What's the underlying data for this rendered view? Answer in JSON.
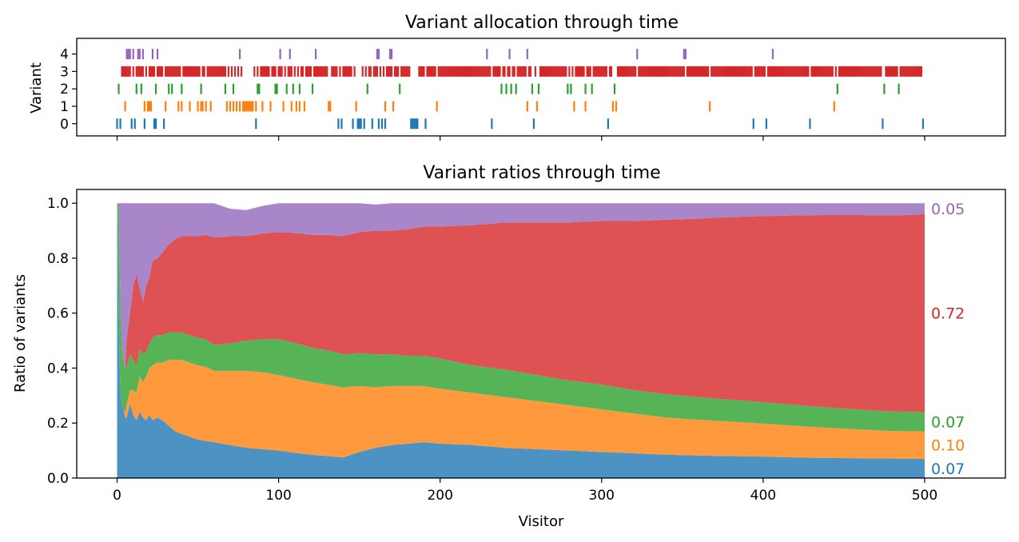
{
  "colors": {
    "variant0": "#1f77b4",
    "variant1": "#ff7f0e",
    "variant2": "#2ca02c",
    "variant3": "#d62728",
    "variant4": "#9467bd"
  },
  "chart_data": [
    {
      "type": "scatter",
      "title": "Variant allocation through time",
      "ylabel": "Variant",
      "xlim": [
        -25,
        550
      ],
      "ylim": [
        -0.7,
        4.9
      ],
      "xticks": [
        0,
        100,
        200,
        300,
        400,
        500
      ],
      "yticks": [
        0,
        1,
        2,
        3,
        4
      ],
      "ytick_labels": [
        "0",
        "1",
        "2",
        "3",
        "4"
      ],
      "marker": "vertical-line",
      "series": [
        {
          "variant": 0,
          "x": [
            0,
            2,
            9,
            11,
            17,
            23,
            24,
            29,
            86,
            137,
            139,
            146,
            149,
            150,
            151,
            153,
            158,
            162,
            164,
            166,
            182,
            183,
            184,
            185,
            186,
            191,
            232,
            258,
            304,
            394,
            402,
            429,
            474,
            499
          ]
        },
        {
          "variant": 1,
          "x": [
            5,
            17,
            19,
            20,
            21,
            30,
            38,
            40,
            45,
            50,
            52,
            53,
            55,
            58,
            68,
            70,
            72,
            74,
            76,
            78,
            79,
            80,
            81,
            82,
            83,
            84,
            86,
            90,
            95,
            103,
            108,
            111,
            113,
            116,
            131,
            132,
            148,
            166,
            171,
            198,
            254,
            260,
            283,
            290,
            307,
            309,
            367,
            444
          ]
        },
        {
          "variant": 2,
          "x": [
            1,
            12,
            15,
            24,
            32,
            34,
            40,
            52,
            67,
            72,
            87,
            88,
            98,
            99,
            105,
            109,
            113,
            121,
            155,
            175,
            238,
            241,
            244,
            247,
            257,
            261,
            279,
            281,
            290,
            294,
            308,
            446,
            475,
            484
          ]
        },
        {
          "variant": 3,
          "x": [
            3,
            4,
            5,
            6,
            7,
            8,
            10,
            12,
            13,
            14,
            15,
            16,
            18,
            20,
            21,
            22,
            23,
            25,
            26,
            27,
            28,
            30,
            31,
            32,
            33,
            34,
            35,
            36,
            37,
            38,
            39,
            41,
            42,
            43,
            44,
            45,
            46,
            47,
            48,
            49,
            50,
            51,
            53,
            54,
            56,
            57,
            58,
            59,
            60,
            61,
            62,
            63,
            64,
            65,
            66,
            67,
            69,
            71,
            73,
            75,
            77,
            85,
            87,
            89,
            90,
            91,
            92,
            93,
            94,
            96,
            97,
            98,
            100,
            101,
            102,
            104,
            106,
            107,
            108,
            110,
            112,
            114,
            115,
            117,
            118,
            119,
            120,
            122,
            123,
            124,
            125,
            126,
            127,
            128,
            129,
            130,
            133,
            134,
            135,
            136,
            138,
            140,
            141,
            142,
            143,
            144,
            145,
            147,
            152,
            154,
            156,
            157,
            159,
            160,
            161,
            163,
            165,
            167,
            168,
            169,
            170,
            172,
            173,
            174,
            176,
            177,
            178,
            179,
            180,
            181,
            187,
            188,
            189,
            190,
            192,
            193,
            194,
            195,
            196,
            197,
            199,
            200,
            201,
            202,
            203,
            204,
            205,
            206,
            207,
            208,
            209,
            210,
            211,
            212,
            213,
            214,
            215,
            216,
            217,
            218,
            219,
            220,
            221,
            222,
            223,
            224,
            225,
            226,
            227,
            228,
            229,
            230,
            231,
            233,
            234,
            235,
            236,
            237,
            239,
            240,
            242,
            243,
            245,
            246,
            248,
            249,
            250,
            251,
            252,
            253,
            255,
            256,
            259,
            262,
            263,
            264,
            265,
            266,
            267,
            268,
            269,
            270,
            271,
            272,
            273,
            274,
            275,
            276,
            277,
            278,
            280,
            282,
            284,
            285,
            286,
            287,
            288,
            289,
            291,
            292,
            293,
            295,
            296,
            297,
            298,
            299,
            300,
            301,
            302,
            303,
            305,
            306,
            310,
            311,
            312,
            313,
            314,
            315,
            316,
            317,
            318,
            319,
            320,
            321,
            323,
            324,
            325,
            326,
            327,
            328,
            329,
            330,
            331,
            332,
            333,
            334,
            335,
            336,
            337,
            338,
            339,
            340,
            341,
            342,
            343,
            344,
            345,
            346,
            347,
            348,
            349,
            350,
            351,
            353,
            354,
            355,
            356,
            357,
            358,
            359,
            360,
            361,
            362,
            363,
            364,
            365,
            366,
            368,
            369,
            370,
            371,
            372,
            373,
            374,
            375,
            376,
            377,
            378,
            379,
            380,
            381,
            382,
            383,
            384,
            385,
            386,
            387,
            388,
            389,
            390,
            391,
            392,
            393,
            395,
            396,
            397,
            398,
            399,
            400,
            401,
            403,
            404,
            405,
            406,
            407,
            408,
            409,
            410,
            411,
            412,
            413,
            414,
            415,
            416,
            417,
            418,
            419,
            420,
            421,
            422,
            423,
            424,
            425,
            426,
            427,
            428,
            430,
            431,
            432,
            433,
            434,
            435,
            436,
            437,
            438,
            439,
            440,
            441,
            442,
            443,
            445,
            447,
            448,
            449,
            450,
            451,
            452,
            453,
            454,
            455,
            456,
            457,
            458,
            459,
            460,
            461,
            462,
            463,
            464,
            465,
            466,
            467,
            468,
            469,
            470,
            471,
            472,
            473,
            476,
            477,
            478,
            479,
            480,
            481,
            482,
            483,
            485,
            486,
            487,
            488,
            489,
            490,
            491,
            492,
            493,
            494,
            495,
            496,
            497,
            498
          ]
        },
        {
          "variant": 4,
          "x": [
            6,
            7,
            8,
            10,
            13,
            14,
            16,
            22,
            25,
            76,
            101,
            107,
            123,
            161,
            162,
            169,
            170,
            229,
            243,
            254,
            322,
            351,
            352,
            406
          ]
        }
      ]
    },
    {
      "type": "area",
      "stacked": true,
      "title": "Variant ratios through time",
      "xlabel": "Visitor",
      "ylabel": "Ratio of variants",
      "xlim": [
        -25,
        550
      ],
      "ylim": [
        0,
        1.05
      ],
      "xticks": [
        0,
        100,
        200,
        300,
        400,
        500
      ],
      "xtick_labels": [
        "0",
        "100",
        "200",
        "300",
        "400",
        "500"
      ],
      "yticks": [
        0,
        0.2,
        0.4,
        0.6,
        0.8,
        1.0
      ],
      "ytick_labels": [
        "0.0",
        "0.2",
        "0.4",
        "0.6",
        "0.8",
        "1.0"
      ],
      "x": [
        0,
        1,
        2,
        3,
        4,
        5,
        6,
        8,
        10,
        12,
        14,
        16,
        18,
        20,
        22,
        25,
        28,
        32,
        36,
        40,
        45,
        50,
        55,
        60,
        70,
        80,
        90,
        100,
        110,
        120,
        130,
        140,
        150,
        160,
        170,
        180,
        190,
        200,
        220,
        240,
        260,
        280,
        300,
        320,
        340,
        360,
        380,
        400,
        420,
        440,
        460,
        480,
        500
      ],
      "series": [
        {
          "variant": 0,
          "values": [
            1.0,
            0.55,
            0.32,
            0.26,
            0.25,
            0.22,
            0.22,
            0.27,
            0.23,
            0.21,
            0.24,
            0.22,
            0.21,
            0.23,
            0.21,
            0.22,
            0.21,
            0.19,
            0.17,
            0.16,
            0.15,
            0.14,
            0.135,
            0.13,
            0.12,
            0.11,
            0.105,
            0.1,
            0.092,
            0.085,
            0.08,
            0.075,
            0.095,
            0.11,
            0.12,
            0.125,
            0.13,
            0.125,
            0.12,
            0.11,
            0.105,
            0.1,
            0.095,
            0.09,
            0.085,
            0.082,
            0.08,
            0.078,
            0.075,
            0.073,
            0.072,
            0.071,
            0.07
          ]
        },
        {
          "variant": 1,
          "values": [
            0.0,
            0.0,
            0.0,
            0.0,
            0.0,
            0.02,
            0.05,
            0.05,
            0.09,
            0.1,
            0.13,
            0.13,
            0.16,
            0.17,
            0.2,
            0.2,
            0.21,
            0.24,
            0.26,
            0.27,
            0.27,
            0.27,
            0.27,
            0.26,
            0.27,
            0.28,
            0.28,
            0.275,
            0.27,
            0.265,
            0.26,
            0.255,
            0.24,
            0.22,
            0.215,
            0.21,
            0.205,
            0.2,
            0.19,
            0.185,
            0.175,
            0.165,
            0.155,
            0.145,
            0.135,
            0.13,
            0.125,
            0.12,
            0.115,
            0.11,
            0.105,
            0.1,
            0.1
          ]
        },
        {
          "variant": 2,
          "values": [
            0.0,
            0.45,
            0.32,
            0.22,
            0.18,
            0.16,
            0.14,
            0.13,
            0.11,
            0.1,
            0.1,
            0.1,
            0.09,
            0.09,
            0.1,
            0.1,
            0.1,
            0.1,
            0.1,
            0.1,
            0.1,
            0.1,
            0.1,
            0.095,
            0.1,
            0.11,
            0.12,
            0.13,
            0.13,
            0.125,
            0.125,
            0.12,
            0.12,
            0.12,
            0.115,
            0.11,
            0.11,
            0.11,
            0.1,
            0.1,
            0.095,
            0.09,
            0.09,
            0.085,
            0.085,
            0.082,
            0.08,
            0.078,
            0.076,
            0.074,
            0.072,
            0.071,
            0.07
          ]
        },
        {
          "variant": 3,
          "values": [
            0.0,
            0.0,
            0.0,
            0.0,
            0.0,
            0.0,
            0.1,
            0.15,
            0.27,
            0.33,
            0.22,
            0.19,
            0.24,
            0.24,
            0.28,
            0.28,
            0.3,
            0.32,
            0.34,
            0.35,
            0.36,
            0.37,
            0.38,
            0.39,
            0.39,
            0.38,
            0.385,
            0.39,
            0.4,
            0.41,
            0.42,
            0.43,
            0.44,
            0.45,
            0.45,
            0.46,
            0.47,
            0.48,
            0.51,
            0.535,
            0.555,
            0.575,
            0.595,
            0.615,
            0.635,
            0.65,
            0.665,
            0.677,
            0.69,
            0.7,
            0.708,
            0.713,
            0.72
          ]
        },
        {
          "variant": 4,
          "values": [
            0.0,
            0.0,
            0.36,
            0.52,
            0.57,
            0.6,
            0.49,
            0.4,
            0.3,
            0.26,
            0.31,
            0.36,
            0.3,
            0.27,
            0.21,
            0.2,
            0.18,
            0.15,
            0.13,
            0.12,
            0.12,
            0.12,
            0.115,
            0.125,
            0.1,
            0.095,
            0.1,
            0.105,
            0.108,
            0.115,
            0.115,
            0.12,
            0.105,
            0.095,
            0.1,
            0.095,
            0.085,
            0.085,
            0.08,
            0.07,
            0.07,
            0.07,
            0.065,
            0.065,
            0.06,
            0.056,
            0.05,
            0.047,
            0.044,
            0.043,
            0.043,
            0.045,
            0.05
          ]
        }
      ],
      "end_labels": [
        {
          "variant": 4,
          "text": "0.05"
        },
        {
          "variant": 3,
          "text": "0.72"
        },
        {
          "variant": 2,
          "text": "0.07"
        },
        {
          "variant": 1,
          "text": "0.10"
        },
        {
          "variant": 0,
          "text": "0.07"
        }
      ]
    }
  ]
}
